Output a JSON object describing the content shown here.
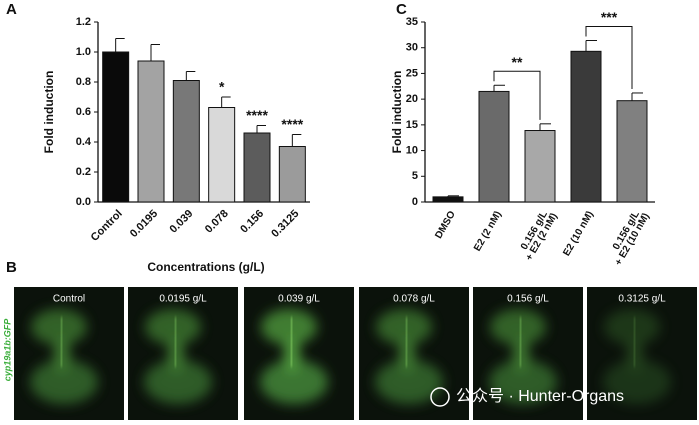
{
  "panel_labels": [
    "A",
    "B",
    "C"
  ],
  "chart_data": [
    {
      "type": "bar",
      "ylabel": "Fold induction",
      "xlabel": "Concentrations (g/L)",
      "categories": [
        "Control",
        "0.0195",
        "0.039",
        "0.078",
        "0.156",
        "0.3125"
      ],
      "values": [
        1.0,
        0.94,
        0.81,
        0.63,
        0.46,
        0.37
      ],
      "errors": [
        0.09,
        0.11,
        0.06,
        0.07,
        0.05,
        0.08
      ],
      "annotations": [
        null,
        null,
        null,
        "*",
        "****",
        "****"
      ],
      "colors": [
        "#0a0a0a",
        "#a3a3a3",
        "#787878",
        "#d9d9d9",
        "#5c5c5c",
        "#9b9b9b"
      ],
      "ylim": [
        0,
        1.2
      ],
      "yticks": [
        {
          "value": 0,
          "label": "0.0"
        },
        {
          "value": 0.2,
          "label": "0.2"
        },
        {
          "value": 0.4,
          "label": "0.4"
        },
        {
          "value": 0.6,
          "label": "0.6"
        },
        {
          "value": 0.8,
          "label": "0.8"
        },
        {
          "value": 1.0,
          "label": "1.0"
        },
        {
          "value": 1.2,
          "label": "1.2"
        }
      ]
    },
    {
      "type": "bar",
      "ylabel": "Fold induction",
      "categories": [
        [
          "DMSO"
        ],
        [
          "E2 (2 nM)"
        ],
        [
          "0.156 g/L",
          "+ E2 (2 nM)"
        ],
        [
          "E2 (10 nM)"
        ],
        [
          "0.156 g/L",
          "+ E2 (10 nM)"
        ]
      ],
      "values": [
        1,
        21.5,
        13.9,
        29.3,
        19.7
      ],
      "errors": [
        0.2,
        1.2,
        1.3,
        2.1,
        1.5
      ],
      "colors": [
        "#111111",
        "#6a6a6a",
        "#a8a8a8",
        "#3a3a3a",
        "#808080"
      ],
      "brackets": [
        {
          "from": 1,
          "to": 2,
          "label": "**"
        },
        {
          "from": 3,
          "to": 4,
          "label": "***"
        }
      ],
      "ylim": [
        0,
        35
      ],
      "yticks": [
        0,
        5,
        10,
        15,
        20,
        25,
        30,
        35
      ]
    }
  ],
  "images": {
    "ylabel": "cyp19a1b:GFP",
    "labels": [
      "Control",
      "0.0195 g/L",
      "0.039 g/L",
      "0.078 g/L",
      "0.156 g/L",
      "0.3125 g/L"
    ]
  },
  "watermark": "公众号 · Hunter-Organs"
}
